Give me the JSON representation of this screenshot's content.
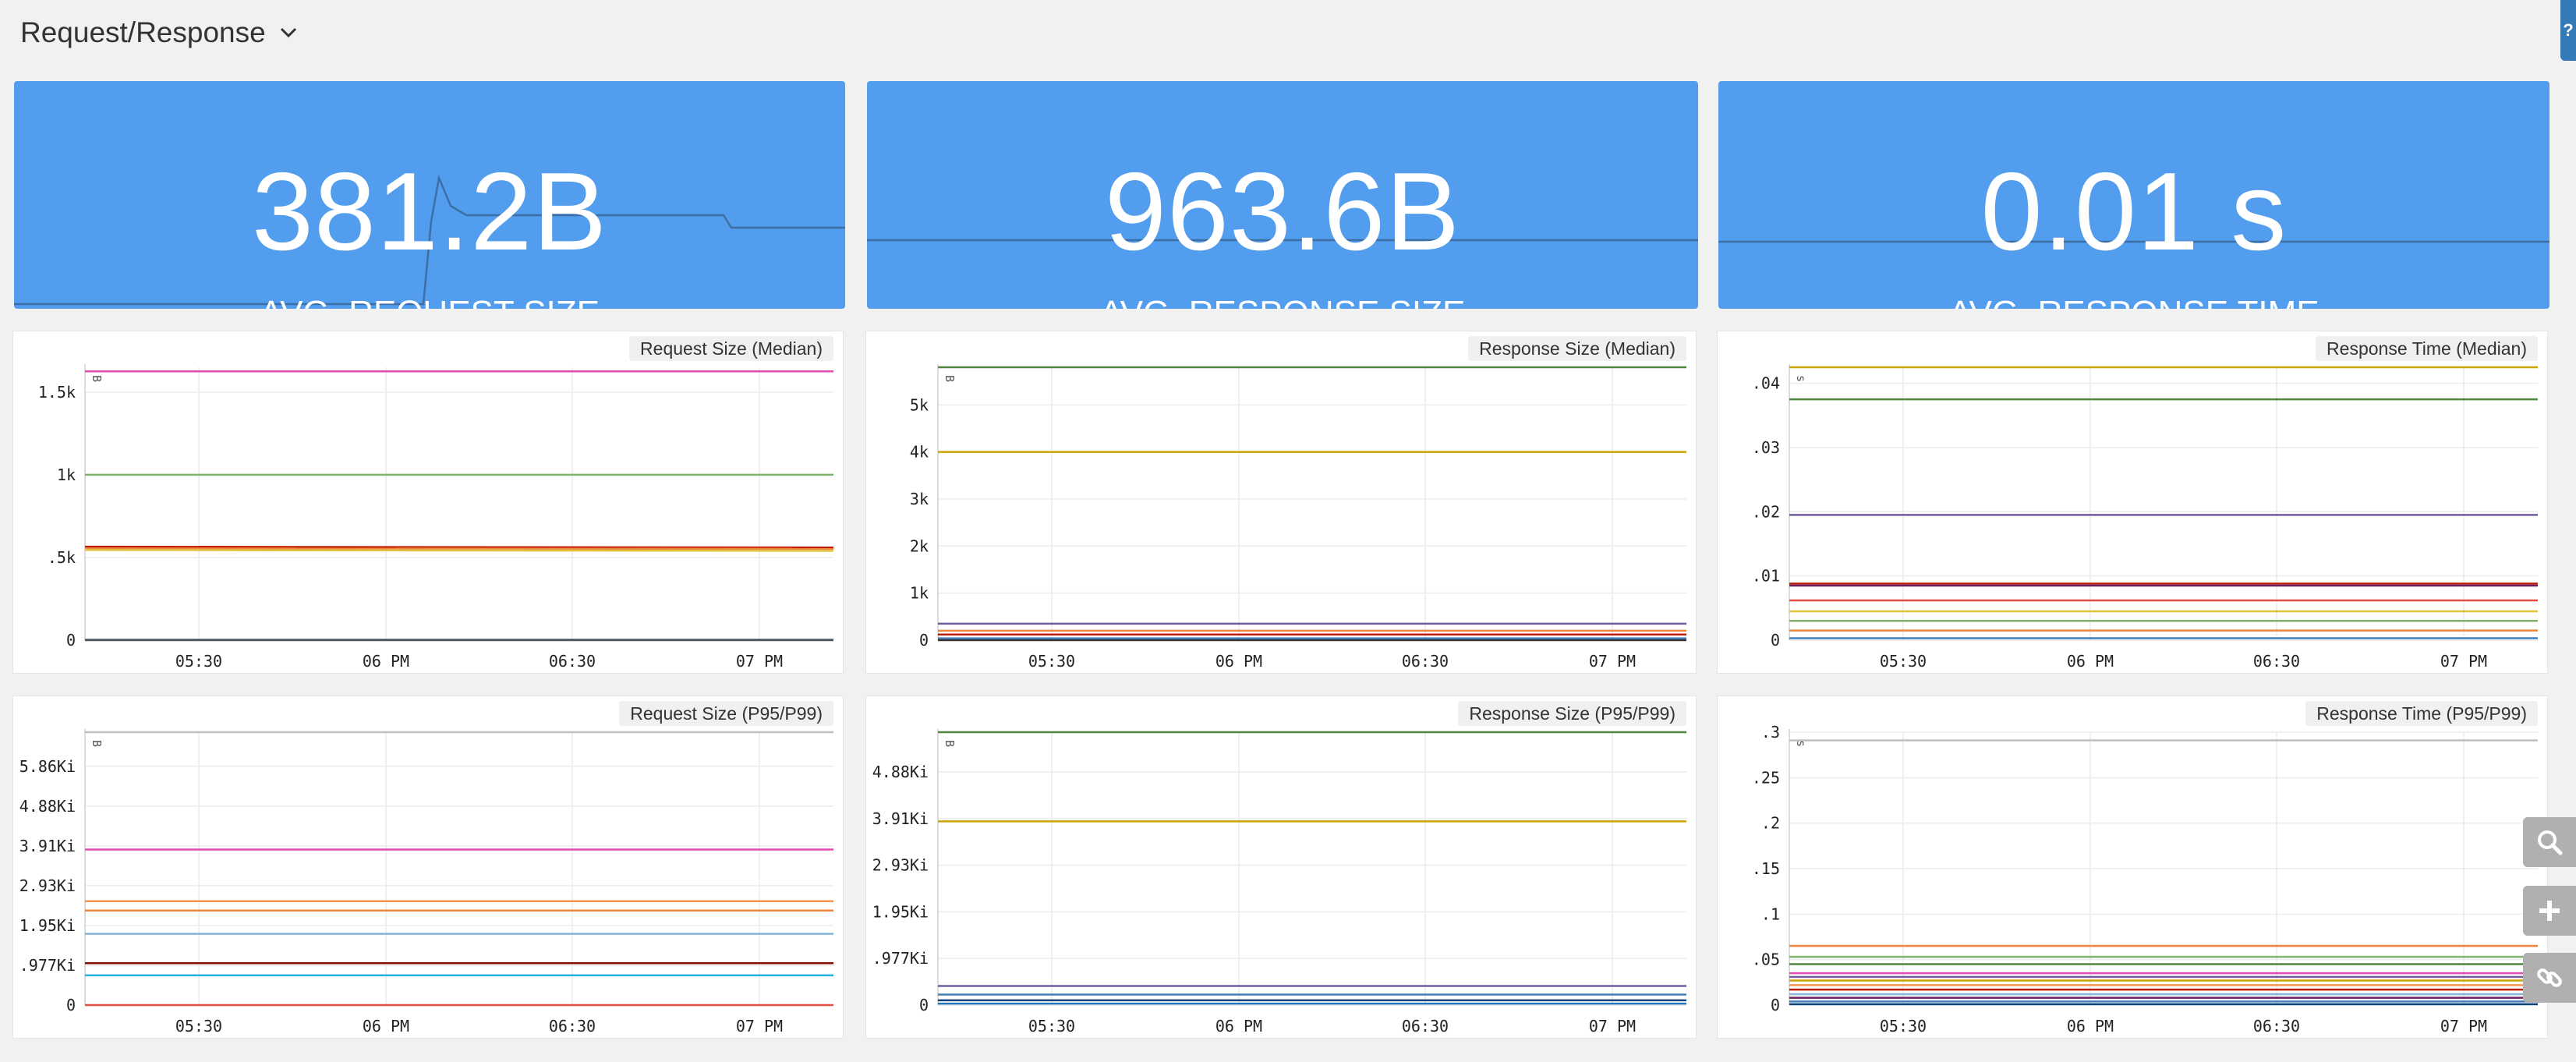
{
  "row": {
    "title": "Request/Response"
  },
  "help": {
    "label": "?"
  },
  "stats": [
    {
      "value": "381.2B",
      "label": "AVG. REQUEST SIZE"
    },
    {
      "value": "963.6B",
      "label": "AVG. RESPONSE SIZE"
    },
    {
      "value": "0.01 s",
      "label": "AVG. RESPONSE TIME"
    }
  ],
  "chart_data": [
    {
      "type": "line",
      "title": "Request Size (Median)",
      "unit": "B",
      "yticks": [
        "0",
        ".5k",
        "1k",
        "1.5k"
      ],
      "ylim": [
        0,
        1650
      ],
      "xticks": [
        "05:30",
        "06 PM",
        "06:30",
        "07 PM"
      ],
      "series": [
        {
          "color": "#e04cb3",
          "values": [
            1625,
            1625
          ]
        },
        {
          "color": "#7eb26d",
          "values": [
            1000,
            1000
          ]
        },
        {
          "color": "#bf1b00",
          "values": [
            565,
            560
          ]
        },
        {
          "color": "#ef843c",
          "values": [
            555,
            552
          ]
        },
        {
          "color": "#e0c33c",
          "values": [
            545,
            540
          ]
        },
        {
          "color": "#447ebc",
          "values": [
            3,
            3
          ]
        },
        {
          "color": "#555555",
          "values": [
            0,
            0
          ]
        }
      ]
    },
    {
      "type": "line",
      "title": "Response Size (Median)",
      "unit": "B",
      "yticks": [
        "0",
        "1k",
        "2k",
        "3k",
        "4k",
        "5k"
      ],
      "ylim": [
        0,
        5800
      ],
      "xticks": [
        "05:30",
        "06 PM",
        "06:30",
        "07 PM"
      ],
      "series": [
        {
          "color": "#508642",
          "values": [
            5800,
            5800
          ]
        },
        {
          "color": "#cca300",
          "values": [
            4000,
            4000
          ]
        },
        {
          "color": "#705da0",
          "values": [
            350,
            350
          ]
        },
        {
          "color": "#ef843c",
          "values": [
            200,
            200
          ]
        },
        {
          "color": "#bf1b00",
          "values": [
            120,
            120
          ]
        },
        {
          "color": "#447ebc",
          "values": [
            40,
            40
          ]
        },
        {
          "color": "#333333",
          "values": [
            0,
            0
          ]
        }
      ]
    },
    {
      "type": "line",
      "title": "Response Time (Median)",
      "unit": "s",
      "yticks": [
        "0",
        ".01",
        ".02",
        ".03",
        ".04"
      ],
      "ylim": [
        0,
        0.0425
      ],
      "xticks": [
        "05:30",
        "06 PM",
        "06:30",
        "07 PM"
      ],
      "series": [
        {
          "color": "#cca300",
          "values": [
            0.0425,
            0.0425
          ]
        },
        {
          "color": "#508642",
          "values": [
            0.0375,
            0.0375
          ]
        },
        {
          "color": "#705da0",
          "values": [
            0.0195,
            0.0195
          ]
        },
        {
          "color": "#bf1b00",
          "values": [
            0.0088,
            0.0088
          ]
        },
        {
          "color": "#6d1f62",
          "values": [
            0.0085,
            0.0085
          ]
        },
        {
          "color": "#e24d42",
          "values": [
            0.0062,
            0.0062
          ]
        },
        {
          "color": "#e0c33c",
          "values": [
            0.0045,
            0.0045
          ]
        },
        {
          "color": "#7eb26d",
          "values": [
            0.003,
            0.003
          ]
        },
        {
          "color": "#ef843c",
          "values": [
            0.0015,
            0.0015
          ]
        },
        {
          "color": "#447ebc",
          "values": [
            0.0003,
            0.0003
          ]
        }
      ]
    },
    {
      "type": "line",
      "title": "Request Size (P95/P99)",
      "unit": "B",
      "yticks": [
        "0",
        ".977Ki",
        "1.95Ki",
        "2.93Ki",
        "3.91Ki",
        "4.88Ki",
        "5.86Ki"
      ],
      "ylim": [
        0,
        6.7
      ],
      "xticks": [
        "05:30",
        "06 PM",
        "06:30",
        "07 PM"
      ],
      "series": [
        {
          "color": "#bfbfbf",
          "values": [
            6.7,
            6.7
          ]
        },
        {
          "color": "#e04cb3",
          "values": [
            3.82,
            3.82
          ]
        },
        {
          "color": "#f9934e",
          "values": [
            2.55,
            2.55
          ]
        },
        {
          "color": "#ef843c",
          "values": [
            2.32,
            2.32
          ]
        },
        {
          "color": "#82b5d8",
          "values": [
            1.75,
            1.75
          ]
        },
        {
          "color": "#890f02",
          "values": [
            1.03,
            1.03
          ]
        },
        {
          "color": "#1fb5e0",
          "values": [
            0.73,
            0.73
          ]
        },
        {
          "color": "#e24d42",
          "values": [
            0.0,
            0.0
          ]
        }
      ]
    },
    {
      "type": "line",
      "title": "Response Size (P95/P99)",
      "unit": "B",
      "yticks": [
        "0",
        ".977Ki",
        "1.95Ki",
        "2.93Ki",
        "3.91Ki",
        "4.88Ki"
      ],
      "ylim": [
        0,
        5.72
      ],
      "xticks": [
        "05:30",
        "06 PM",
        "06:30",
        "07 PM"
      ],
      "series": [
        {
          "color": "#508642",
          "values": [
            5.72,
            5.72
          ]
        },
        {
          "color": "#cca300",
          "values": [
            3.85,
            3.85
          ]
        },
        {
          "color": "#705da0",
          "values": [
            0.4,
            0.4
          ]
        },
        {
          "color": "#447ebc",
          "values": [
            0.22,
            0.22
          ]
        },
        {
          "color": "#0a437c",
          "values": [
            0.1,
            0.1
          ]
        },
        {
          "color": "#1f78c1",
          "values": [
            0.03,
            0.03
          ]
        }
      ]
    },
    {
      "type": "line",
      "title": "Response Time (P95/P99)",
      "unit": "s",
      "yticks": [
        "0",
        ".05",
        ".1",
        ".15",
        ".2",
        ".25",
        ".3"
      ],
      "ylim": [
        0,
        0.3
      ],
      "xticks": [
        "05:30",
        "06 PM",
        "06:30",
        "07 PM"
      ],
      "series": [
        {
          "color": "#bfbfbf",
          "values": [
            0.291,
            0.291
          ]
        },
        {
          "color": "#ef843c",
          "values": [
            0.065,
            0.065
          ]
        },
        {
          "color": "#7eb26d",
          "values": [
            0.053,
            0.053
          ]
        },
        {
          "color": "#508642",
          "values": [
            0.045,
            0.045
          ]
        },
        {
          "color": "#e04cb3",
          "values": [
            0.035,
            0.035
          ]
        },
        {
          "color": "#705da0",
          "values": [
            0.031,
            0.031
          ]
        },
        {
          "color": "#cca300",
          "values": [
            0.027,
            0.027
          ]
        },
        {
          "color": "#f9934e",
          "values": [
            0.022,
            0.022
          ]
        },
        {
          "color": "#bf1b00",
          "values": [
            0.017,
            0.017
          ]
        },
        {
          "color": "#82b5d8",
          "values": [
            0.012,
            0.012
          ]
        },
        {
          "color": "#6d1f62",
          "values": [
            0.008,
            0.008
          ]
        },
        {
          "color": "#447ebc",
          "values": [
            0.004,
            0.004
          ]
        },
        {
          "color": "#0a437c",
          "values": [
            0.001,
            0.001
          ]
        }
      ]
    }
  ],
  "sidebar_tools": [
    {
      "icon": "search-icon"
    },
    {
      "icon": "plus-icon"
    },
    {
      "icon": "link-icon"
    }
  ]
}
